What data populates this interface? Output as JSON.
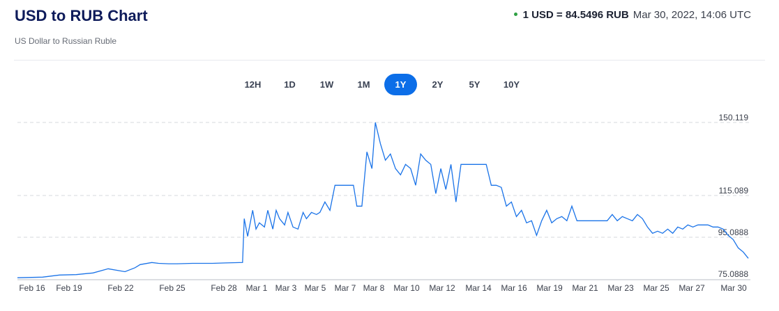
{
  "header": {
    "title": "USD to RUB Chart",
    "subtitle": "US Dollar to Russian Ruble",
    "rate_text": "1 USD = 84.5496 RUB",
    "timestamp": "Mar 30, 2022, 14:06 UTC",
    "status_color": "#2ea043"
  },
  "ranges": {
    "items": [
      "12H",
      "1D",
      "1W",
      "1M",
      "1Y",
      "2Y",
      "5Y",
      "10Y"
    ],
    "selected": "1Y"
  },
  "chart_data": {
    "type": "line",
    "title": "",
    "xlabel": "",
    "ylabel": "",
    "grid": true,
    "line_color": "#1a73e8",
    "ylim": [
      75.0888,
      150.119
    ],
    "yticks": [
      "150.119",
      "115.089",
      "95.0888",
      "75.0888"
    ],
    "xticks": [
      "Feb 16",
      "Feb 19",
      "Feb 22",
      "Feb 25",
      "Feb 28",
      "Mar 1",
      "Mar 3",
      "Mar 5",
      "Mar 7",
      "Mar 8",
      "Mar 10",
      "Mar 12",
      "Mar 14",
      "Mar 16",
      "Mar 19",
      "Mar 21",
      "Mar 23",
      "Mar 25",
      "Mar 27",
      "Mar 30"
    ],
    "series": [
      {
        "x": [
          0,
          1.5,
          2.5,
          3.5,
          4.5,
          5.4,
          6.4,
          7.0,
          7.3,
          8.0,
          8.4,
          9.0,
          9.5,
          10.4,
          11.6,
          12.4,
          13.4,
          13.5,
          13.7,
          14.0,
          14.2,
          14.4,
          14.7,
          14.9,
          15.2,
          15.4,
          15.6,
          15.9,
          16.1,
          16.4,
          16.7,
          17.0,
          17.2,
          17.5,
          17.8,
          18.0,
          18.3,
          18.6,
          18.9,
          19.1,
          19.4,
          19.7,
          20.0,
          20.2,
          20.5,
          20.8,
          21.1,
          21.3,
          21.6,
          21.9,
          22.2,
          22.5,
          22.8,
          23.1,
          23.4,
          23.7,
          24.0,
          24.3,
          24.6,
          24.9,
          25.2,
          25.5,
          25.8,
          26.1,
          26.4,
          26.7,
          27.0,
          27.3,
          27.6,
          27.9,
          28.2,
          28.5,
          28.8,
          29.1,
          29.4,
          29.7,
          30.0,
          30.3,
          30.6,
          30.9,
          31.2,
          31.5,
          31.8,
          32.1,
          32.4,
          32.7,
          33.0,
          33.3,
          33.6,
          33.9,
          34.2,
          34.5,
          34.8,
          35.1,
          35.4,
          35.7,
          36.0,
          36.3,
          36.6,
          36.9,
          37.2,
          37.5,
          37.8,
          38.1,
          38.4,
          38.7,
          39.0,
          39.3,
          39.6,
          39.9,
          40.2,
          40.5,
          40.8,
          41.1,
          41.4,
          41.7,
          42.0,
          42.3,
          42.6,
          42.9,
          43.2,
          43.5
        ],
        "y": [
          75.7,
          76.0,
          77.0,
          77.2,
          78.0,
          80.0,
          78.6,
          80.5,
          82.0,
          83.0,
          82.6,
          82.4,
          82.4,
          82.6,
          82.6,
          82.8,
          83.0,
          104.0,
          95.5,
          108.0,
          99.0,
          102.0,
          100.0,
          108.0,
          99.0,
          108.0,
          104.0,
          101.0,
          107.0,
          100.0,
          99.0,
          107.0,
          104.0,
          107.0,
          106.0,
          107.0,
          112.0,
          108.0,
          120.0,
          120.0,
          120.0,
          120.0,
          120.0,
          110.0,
          110.0,
          136.0,
          128.0,
          150.119,
          140.0,
          132.0,
          135.0,
          128.0,
          125.0,
          130.0,
          128.0,
          120.0,
          135.0,
          132.0,
          130.0,
          116.0,
          128.0,
          118.0,
          130.0,
          112.0,
          130.0,
          130.0,
          130.0,
          130.0,
          130.0,
          130.0,
          120.0,
          120.0,
          119.0,
          110.0,
          112.0,
          105.0,
          108.0,
          102.0,
          103.0,
          96.0,
          103.0,
          108.0,
          102.0,
          104.0,
          105.0,
          103.0,
          110.0,
          103.0,
          103.0,
          103.0,
          103.0,
          103.0,
          103.0,
          103.0,
          106.0,
          103.0,
          105.0,
          104.0,
          103.0,
          106.0,
          104.0,
          100.0,
          97.0,
          98.0,
          97.0,
          99.0,
          97.0,
          100.0,
          99.0,
          101.0,
          100.0,
          101.0,
          101.0,
          101.0,
          100.0,
          100.0,
          99.0,
          96.0,
          94.0,
          90.0,
          88.0,
          85.0
        ]
      }
    ]
  }
}
